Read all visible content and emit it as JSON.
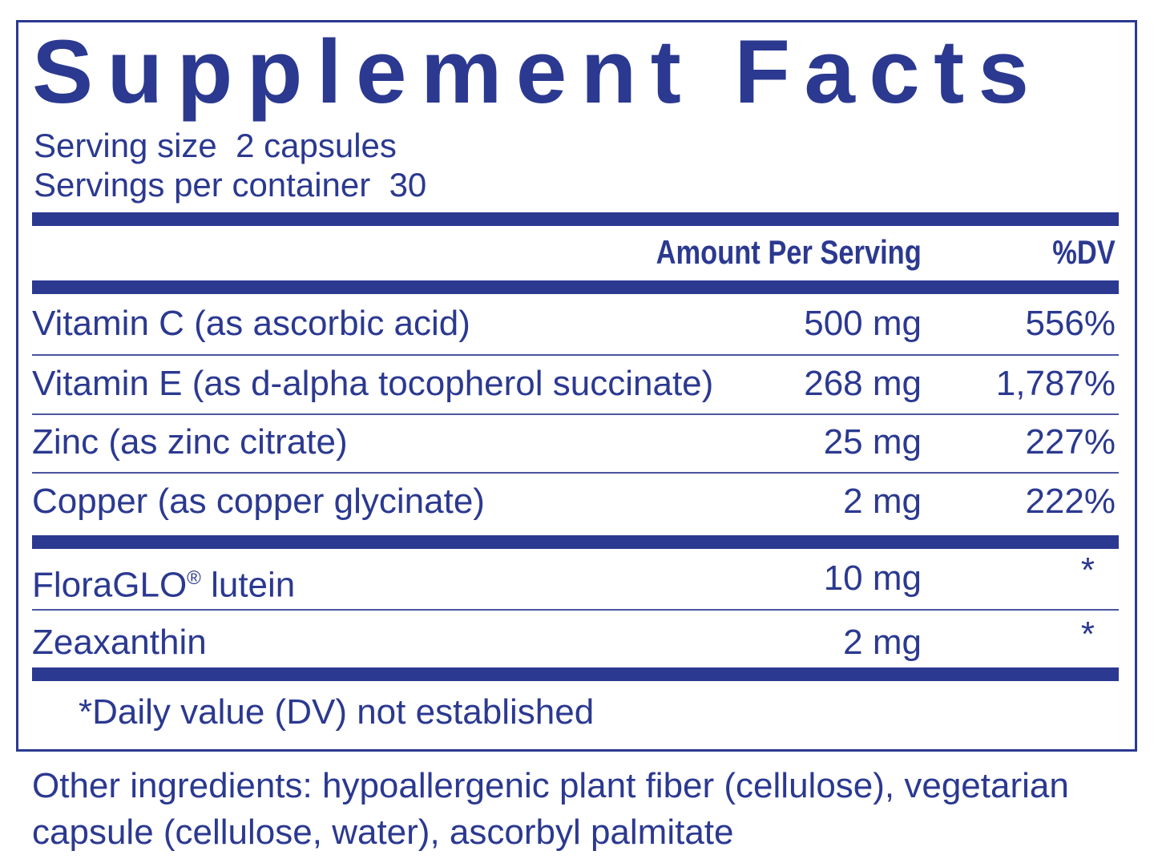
{
  "title": "Supplement Facts",
  "serving_size": "Serving size  2 capsules",
  "servings_per_container": "Servings per container  30",
  "header": {
    "amount": "Amount Per Serving",
    "dv": "%DV"
  },
  "ingredients": [
    {
      "name": "Vitamin C (as ascorbic acid)",
      "amount": "500 mg",
      "dv": "556%"
    },
    {
      "name": "Vitamin E (as d-alpha tocopherol succinate)",
      "amount": "268 mg",
      "dv": "1,787%"
    },
    {
      "name": "Zinc (as zinc citrate)",
      "amount": "25 mg",
      "dv": "227%"
    },
    {
      "name": "Copper (as copper glycinate)",
      "amount": "2 mg",
      "dv": "222%"
    },
    {
      "name": "FloraGLO",
      "reg": "®",
      "name_suffix": " lutein",
      "amount": "10 mg",
      "dv": "*"
    },
    {
      "name": "Zeaxanthin",
      "amount": "2 mg",
      "dv": "*"
    }
  ],
  "footnote": "*Daily value (DV) not established",
  "other_ingredients": "Other ingredients: hypoallergenic plant fiber (cellulose), vegetarian capsule (cellulose, water), ascorbyl palmitate",
  "colors": {
    "primary": "#2b3990"
  }
}
